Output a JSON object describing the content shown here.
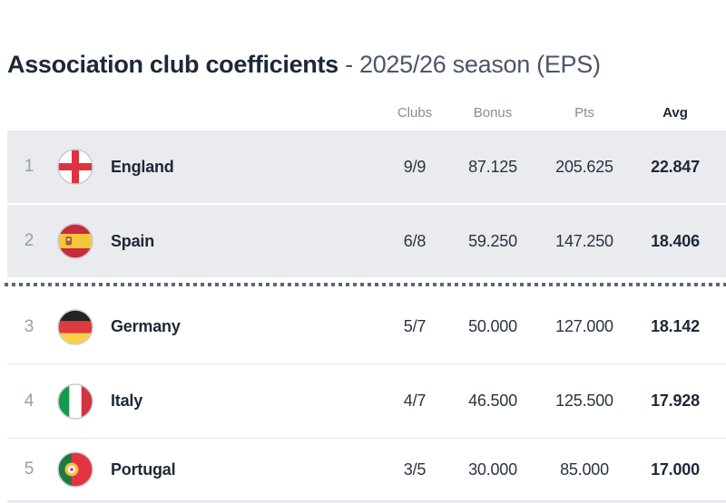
{
  "title": {
    "main": "Association club coefficients",
    "suffix": " - 2025/26 season (EPS)"
  },
  "table": {
    "columns": [
      {
        "key": "clubs",
        "label": "Clubs",
        "emphasis": false
      },
      {
        "key": "bonus",
        "label": "Bonus",
        "emphasis": false
      },
      {
        "key": "pts",
        "label": "Pts",
        "emphasis": false
      },
      {
        "key": "avg",
        "label": "Avg",
        "emphasis": true
      }
    ],
    "rows": [
      {
        "rank": "1",
        "country": "England",
        "flag": "england",
        "clubs": "9/9",
        "bonus": "87.125",
        "pts": "205.625",
        "avg": "22.847",
        "highlighted": true
      },
      {
        "rank": "2",
        "country": "Spain",
        "flag": "spain",
        "clubs": "6/8",
        "bonus": "59.250",
        "pts": "147.250",
        "avg": "18.406",
        "highlighted": true
      },
      {
        "rank": "3",
        "country": "Germany",
        "flag": "germany",
        "clubs": "5/7",
        "bonus": "50.000",
        "pts": "127.000",
        "avg": "18.142",
        "highlighted": false
      },
      {
        "rank": "4",
        "country": "Italy",
        "flag": "italy",
        "clubs": "4/7",
        "bonus": "46.500",
        "pts": "125.500",
        "avg": "17.928",
        "highlighted": false
      },
      {
        "rank": "5",
        "country": "Portugal",
        "flag": "portugal",
        "clubs": "3/5",
        "bonus": "30.000",
        "pts": "85.000",
        "avg": "17.000",
        "highlighted": false
      }
    ],
    "cutoff_after_rank": 2
  },
  "colors": {
    "text_dark": "#1d2838",
    "title_suffix": "#4b5567",
    "header_gray": "#858e98",
    "rank_gray": "#98a0a9",
    "highlight_row_bg": "#e9ebee",
    "row_divider": "#e3e6ea",
    "cutoff_dots": "#5e6976",
    "flag_ring": "#c9cdd2"
  },
  "flags": {
    "england": {
      "field": "#ffffff",
      "cross": "#dd3341"
    },
    "spain": {
      "red": "#c82b39",
      "yellow": "#f5c53c",
      "emblem": "#a65c35"
    },
    "germany": {
      "black": "#232323",
      "red": "#e03a3e",
      "gold": "#ffd046"
    },
    "italy": {
      "green": "#169b4e",
      "white": "#ffffff",
      "red": "#d2343f"
    },
    "portugal": {
      "green": "#1d7a3f",
      "red": "#e23441",
      "emblem_ring": "#f3c13f",
      "emblem_center": "#ffffff",
      "emblem_dot": "#d04050"
    }
  }
}
